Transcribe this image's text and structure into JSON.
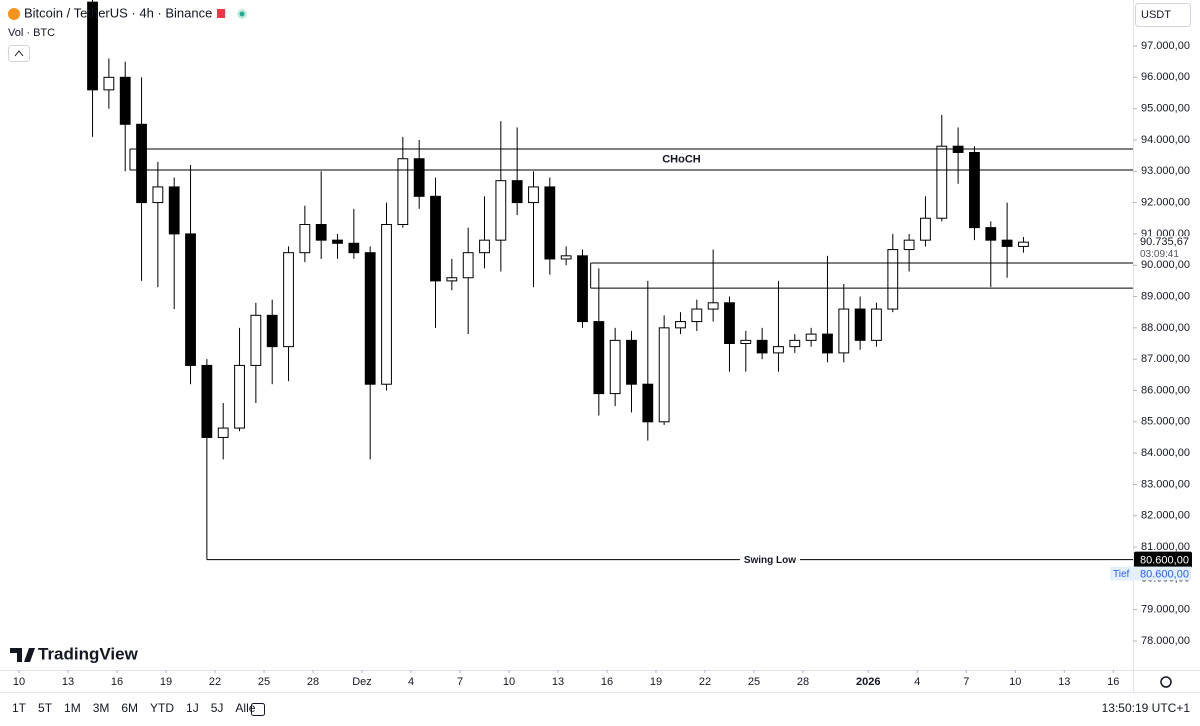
{
  "ui": {
    "symbol_title": "Bitcoin / TetherUS · 4h · Binance",
    "volume_label": "Vol · BTC",
    "currency": "USDT",
    "logo": "TradingView",
    "timeframes": [
      "1T",
      "5T",
      "1M",
      "3M",
      "6M",
      "YTD",
      "1J",
      "5J",
      "Alle"
    ],
    "clock": "13:50:19 UTC+1"
  },
  "chart_data": {
    "type": "candlestick",
    "x": [
      "2025-11-14",
      "2025-11-15",
      "2025-11-16",
      "2025-11-17",
      "2025-11-18",
      "2025-11-19",
      "2025-11-20",
      "2025-11-21",
      "2025-11-22",
      "2025-11-23",
      "2025-11-24",
      "2025-11-25",
      "2025-11-26",
      "2025-11-27",
      "2025-11-28",
      "2025-11-29",
      "2025-11-30",
      "2025-12-01",
      "2025-12-02",
      "2025-12-03",
      "2025-12-04",
      "2025-12-05",
      "2025-12-06",
      "2025-12-07",
      "2025-12-08",
      "2025-12-09",
      "2025-12-10",
      "2025-12-11",
      "2025-12-12",
      "2025-12-13",
      "2025-12-14",
      "2025-12-15",
      "2025-12-16",
      "2025-12-17",
      "2025-12-18",
      "2025-12-19",
      "2025-12-20",
      "2025-12-21",
      "2025-12-22",
      "2025-12-23",
      "2025-12-24",
      "2025-12-25",
      "2025-12-26",
      "2025-12-27",
      "2025-12-28",
      "2025-12-29",
      "2025-12-30",
      "2025-12-31",
      "2026-01-01",
      "2026-01-02",
      "2026-01-03",
      "2026-01-04",
      "2026-01-05",
      "2026-01-06",
      "2026-01-07",
      "2026-01-08",
      "2026-01-09",
      "2026-01-10"
    ],
    "open": [
      98400,
      95600,
      96000,
      94500,
      92000,
      92500,
      91000,
      86800,
      84500,
      84800,
      86800,
      88400,
      87400,
      90400,
      91300,
      90800,
      90700,
      90400,
      86200,
      91300,
      93400,
      92200,
      89500,
      89600,
      90400,
      90800,
      92700,
      92000,
      92500,
      90200,
      90300,
      88200,
      85900,
      87600,
      86200,
      85000,
      88000,
      88200,
      88600,
      88800,
      87500,
      87600,
      87200,
      87400,
      87600,
      87800,
      87200,
      88600,
      87600,
      88600,
      90500,
      90800,
      91500,
      93800,
      93600,
      91200,
      90800,
      90600
    ],
    "high": [
      98500,
      96600,
      96500,
      96000,
      93300,
      92800,
      93200,
      87000,
      85600,
      88000,
      88800,
      88900,
      90600,
      91900,
      93000,
      91000,
      91800,
      90600,
      92000,
      94100,
      94000,
      92800,
      90200,
      91200,
      92200,
      94600,
      94400,
      93000,
      92800,
      90600,
      90500,
      89900,
      88000,
      87900,
      89500,
      88400,
      88500,
      88900,
      90500,
      89000,
      87900,
      88000,
      89500,
      87800,
      88000,
      90300,
      89400,
      89000,
      88800,
      91000,
      91000,
      92200,
      94800,
      94400,
      93800,
      91400,
      92000,
      90900
    ],
    "low": [
      94100,
      95000,
      93000,
      89500,
      89300,
      88600,
      86200,
      80600,
      83800,
      84700,
      85600,
      86200,
      86300,
      90100,
      90200,
      90200,
      90200,
      83800,
      86000,
      91200,
      91800,
      88000,
      89200,
      87800,
      89900,
      89800,
      91600,
      89300,
      89700,
      90000,
      88000,
      85200,
      85500,
      85300,
      84400,
      84900,
      87800,
      87900,
      88200,
      86600,
      86600,
      87000,
      86600,
      87200,
      87400,
      86900,
      86900,
      87300,
      87400,
      88500,
      89800,
      90600,
      91400,
      92600,
      90800,
      89300,
      89600,
      90400
    ],
    "close": [
      95600,
      96000,
      94500,
      92000,
      92500,
      91000,
      86800,
      84500,
      84800,
      86800,
      88400,
      87400,
      90400,
      91300,
      90800,
      90700,
      90400,
      86200,
      91300,
      93400,
      92200,
      89500,
      89600,
      90400,
      90800,
      92700,
      92000,
      92500,
      90200,
      90300,
      88200,
      85900,
      87600,
      86200,
      85000,
      88000,
      88200,
      88600,
      88800,
      87500,
      87600,
      87200,
      87400,
      87600,
      87800,
      87200,
      88600,
      87600,
      88600,
      90500,
      90800,
      91500,
      93800,
      93600,
      91200,
      90800,
      90600,
      90735.67
    ],
    "last_price": {
      "value": 90735.67,
      "label": "90.735,67",
      "countdown": "03:09:41"
    },
    "zones": [
      {
        "label": "CHoCH",
        "top": 93710,
        "bottom": 93040,
        "start": "2025-11-16T19:00"
      },
      {
        "top": 90070,
        "bottom": 89270,
        "start": "2025-12-15T00:00"
      }
    ],
    "levels": [
      {
        "label": "Swing Low",
        "value": 80600,
        "value_label": "80.600,00",
        "start": "2025-11-21T12:00"
      }
    ],
    "low_marker": {
      "label": "Tief",
      "value": 80600,
      "value_label": "80.600,00"
    },
    "ylim": [
      77074,
      98469
    ],
    "yticks": [
      {
        "value": 78000,
        "label": "78.000,00"
      },
      {
        "value": 79000,
        "label": "79.000,00"
      },
      {
        "value": 80000,
        "label": "80.000,00"
      },
      {
        "value": 81000,
        "label": "81.000,00"
      },
      {
        "value": 82000,
        "label": "82.000,00"
      },
      {
        "value": 83000,
        "label": "83.000,00"
      },
      {
        "value": 84000,
        "label": "84.000,00"
      },
      {
        "value": 85000,
        "label": "85.000,00"
      },
      {
        "value": 86000,
        "label": "86.000,00"
      },
      {
        "value": 87000,
        "label": "87.000,00"
      },
      {
        "value": 88000,
        "label": "88.000,00"
      },
      {
        "value": 89000,
        "label": "89.000,00"
      },
      {
        "value": 90000,
        "label": "90.000,00"
      },
      {
        "value": 91000,
        "label": "91.000,00"
      },
      {
        "value": 92000,
        "label": "92.000,00"
      },
      {
        "value": 93000,
        "label": "93.000,00"
      },
      {
        "value": 94000,
        "label": "94.000,00"
      },
      {
        "value": 95000,
        "label": "95.000,00"
      },
      {
        "value": 96000,
        "label": "96.000,00"
      },
      {
        "value": 97000,
        "label": "97.000,00"
      }
    ],
    "xlim": [
      "2025-11-08T20:00",
      "2026-01-17T05:00"
    ],
    "xticks": [
      {
        "value": "2025-11-10",
        "label": "10"
      },
      {
        "value": "2025-11-13",
        "label": "13"
      },
      {
        "value": "2025-11-16",
        "label": "16"
      },
      {
        "value": "2025-11-19",
        "label": "19"
      },
      {
        "value": "2025-11-22",
        "label": "22"
      },
      {
        "value": "2025-11-25",
        "label": "25"
      },
      {
        "value": "2025-11-28",
        "label": "28"
      },
      {
        "value": "2025-12-01",
        "label": "Dez"
      },
      {
        "value": "2025-12-04",
        "label": "4"
      },
      {
        "value": "2025-12-07",
        "label": "7"
      },
      {
        "value": "2025-12-10",
        "label": "10"
      },
      {
        "value": "2025-12-13",
        "label": "13"
      },
      {
        "value": "2025-12-16",
        "label": "16"
      },
      {
        "value": "2025-12-19",
        "label": "19"
      },
      {
        "value": "2025-12-22",
        "label": "22"
      },
      {
        "value": "2025-12-25",
        "label": "25"
      },
      {
        "value": "2025-12-28",
        "label": "28"
      },
      {
        "value": "2026-01-01",
        "label": "2026"
      },
      {
        "value": "2026-01-04",
        "label": "4"
      },
      {
        "value": "2026-01-07",
        "label": "7"
      },
      {
        "value": "2026-01-10",
        "label": "10"
      },
      {
        "value": "2026-01-13",
        "label": "13"
      },
      {
        "value": "2026-01-16",
        "label": "16"
      }
    ],
    "up_color": "#ffffff",
    "down_color": "#000000",
    "outline_color": "#000000"
  }
}
